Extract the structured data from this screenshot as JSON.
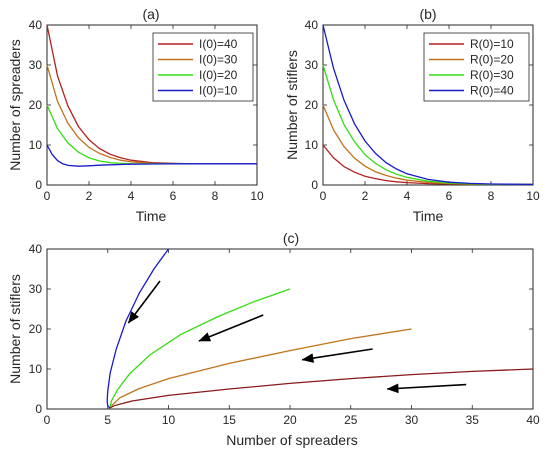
{
  "chart_data": [
    {
      "id": "a",
      "type": "line",
      "title": "(a)",
      "xlabel": "Time",
      "ylabel": "Number of spreaders",
      "xlim": [
        0,
        10
      ],
      "ylim": [
        0,
        40
      ],
      "xticks": [
        0,
        2,
        4,
        6,
        8,
        10
      ],
      "yticks": [
        0,
        10,
        20,
        30,
        40
      ],
      "legend_position": "top-right",
      "series": [
        {
          "name": "I(0)=40",
          "color": "#b22222",
          "x": [
            0,
            0.5,
            1,
            1.5,
            2,
            2.5,
            3,
            3.5,
            4,
            5,
            6,
            7,
            8,
            9,
            10
          ],
          "y": [
            40,
            27.3,
            19.7,
            14.6,
            11.3,
            9.1,
            7.7,
            6.8,
            6.2,
            5.6,
            5.4,
            5.3,
            5.3,
            5.3,
            5.3
          ]
        },
        {
          "name": "I(0)=30",
          "color": "#c0731a",
          "x": [
            0,
            0.5,
            1,
            1.5,
            2,
            2.5,
            3,
            3.5,
            4,
            5,
            6,
            7,
            8,
            9,
            10
          ],
          "y": [
            30,
            20.9,
            15.4,
            11.8,
            9.4,
            7.9,
            6.9,
            6.2,
            5.8,
            5.4,
            5.3,
            5.3,
            5.3,
            5.3,
            5.3
          ]
        },
        {
          "name": "I(0)=20",
          "color": "#33dd11",
          "x": [
            0,
            0.5,
            1,
            1.5,
            2,
            2.5,
            3,
            3.5,
            4,
            5,
            6,
            7,
            8,
            9,
            10
          ],
          "y": [
            20,
            14.1,
            10.5,
            8.2,
            6.8,
            6.0,
            5.6,
            5.4,
            5.3,
            5.3,
            5.3,
            5.3,
            5.3,
            5.3,
            5.3
          ]
        },
        {
          "name": "I(0)=10",
          "color": "#1a1acc",
          "x": [
            0,
            0.25,
            0.5,
            0.75,
            1,
            1.5,
            2,
            2.5,
            3,
            4,
            5,
            6,
            7,
            8,
            9,
            10
          ],
          "y": [
            10,
            7.6,
            6.1,
            5.3,
            4.9,
            4.7,
            4.8,
            4.95,
            5.05,
            5.2,
            5.25,
            5.3,
            5.3,
            5.3,
            5.3,
            5.3
          ]
        }
      ]
    },
    {
      "id": "b",
      "type": "line",
      "title": "(b)",
      "xlabel": "Time",
      "ylabel": "Number of stiflers",
      "xlim": [
        0,
        10
      ],
      "ylim": [
        0,
        40
      ],
      "xticks": [
        0,
        2,
        4,
        6,
        8,
        10
      ],
      "yticks": [
        0,
        10,
        20,
        30,
        40
      ],
      "legend_position": "top-right",
      "series": [
        {
          "name": "R(0)=10",
          "color": "#b22222",
          "x": [
            0,
            0.5,
            1,
            1.5,
            2,
            2.5,
            3,
            3.5,
            4,
            5,
            6,
            7,
            8,
            9,
            10
          ],
          "y": [
            10,
            6.8,
            4.6,
            3.2,
            2.2,
            1.6,
            1.1,
            0.8,
            0.6,
            0.35,
            0.25,
            0.2,
            0.18,
            0.15,
            0.15
          ]
        },
        {
          "name": "R(0)=20",
          "color": "#c0731a",
          "x": [
            0,
            0.5,
            1,
            1.5,
            2,
            2.5,
            3,
            3.5,
            4,
            5,
            6,
            7,
            8,
            9,
            10
          ],
          "y": [
            20,
            13.8,
            9.6,
            6.7,
            4.7,
            3.3,
            2.4,
            1.7,
            1.2,
            0.65,
            0.35,
            0.25,
            0.2,
            0.18,
            0.15
          ]
        },
        {
          "name": "R(0)=30",
          "color": "#33dd11",
          "x": [
            0,
            0.5,
            1,
            1.5,
            2,
            2.5,
            3,
            3.5,
            4,
            5,
            6,
            7,
            8,
            9,
            10
          ],
          "y": [
            30,
            21.3,
            15.1,
            10.8,
            7.6,
            5.4,
            3.8,
            2.7,
            1.9,
            0.95,
            0.5,
            0.3,
            0.2,
            0.18,
            0.15
          ]
        },
        {
          "name": "R(0)=40",
          "color": "#1a1acc",
          "x": [
            0,
            0.5,
            1,
            1.5,
            2,
            2.5,
            3,
            3.5,
            4,
            5,
            6,
            7,
            8,
            9,
            10
          ],
          "y": [
            40,
            29.2,
            21.2,
            15.3,
            11.0,
            7.9,
            5.6,
            4.0,
            2.8,
            1.4,
            0.7,
            0.4,
            0.25,
            0.2,
            0.15
          ]
        }
      ]
    },
    {
      "id": "c",
      "type": "line",
      "title": "(c)",
      "xlabel": "Number of spreaders",
      "ylabel": "Number of stiflers",
      "xlim": [
        0,
        40
      ],
      "ylim": [
        0,
        40
      ],
      "xticks": [
        0,
        5,
        10,
        15,
        20,
        25,
        30,
        35,
        40
      ],
      "yticks": [
        0,
        10,
        20,
        30,
        40
      ],
      "series": [
        {
          "color": "#1a1acc",
          "x": [
            10,
            8.8,
            7.6,
            6.5,
            5.7,
            5.2,
            5.0,
            4.95,
            5.0,
            5.2
          ],
          "y": [
            40,
            35,
            29,
            22,
            15,
            9,
            4.5,
            2,
            0.8,
            0.2
          ]
        },
        {
          "color": "#33dd11",
          "x": [
            20,
            17,
            14,
            11,
            8.5,
            6.8,
            5.8,
            5.3,
            5.2
          ],
          "y": [
            30,
            26.8,
            23.0,
            18.6,
            13.6,
            8.8,
            4.8,
            2.0,
            0.5
          ]
        },
        {
          "color": "#c0731a",
          "x": [
            30,
            25,
            20,
            15,
            10,
            7.5,
            6,
            5.3
          ],
          "y": [
            20,
            17.6,
            14.6,
            11.4,
            7.6,
            5.0,
            2.8,
            0.8
          ]
        },
        {
          "color": "#8b1a1a",
          "x": [
            40,
            35,
            30,
            25,
            20,
            15,
            10,
            7,
            5.5,
            5.2
          ],
          "y": [
            10,
            9.4,
            8.6,
            7.6,
            6.4,
            5.0,
            3.4,
            2.0,
            0.8,
            0.3
          ]
        }
      ],
      "arrows": [
        {
          "from": [
            9.3,
            32
          ],
          "to": [
            6.7,
            21.5
          ]
        },
        {
          "from": [
            17.8,
            23.5
          ],
          "to": [
            12.5,
            17.0
          ]
        },
        {
          "from": [
            26.8,
            15.0
          ],
          "to": [
            21.0,
            12.3
          ]
        },
        {
          "from": [
            34.5,
            6.1
          ],
          "to": [
            28.0,
            5.0
          ]
        }
      ]
    }
  ]
}
